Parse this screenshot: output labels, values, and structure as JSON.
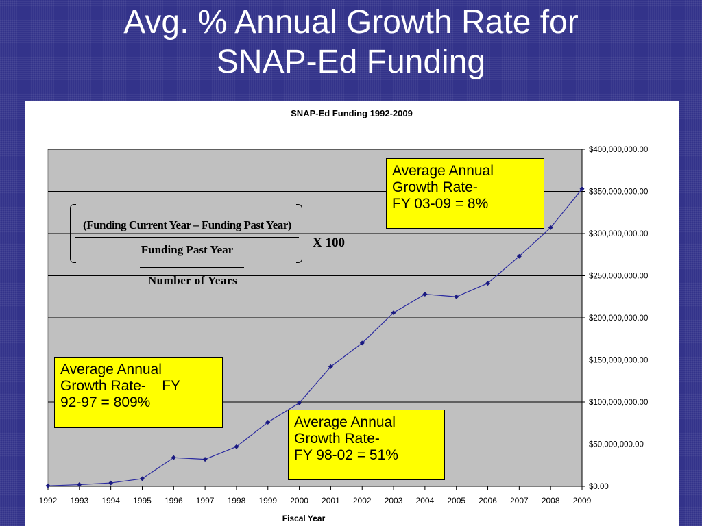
{
  "slide": {
    "title_line1": "Avg. % Annual Growth Rate for",
    "title_line2": "SNAP-Ed Funding"
  },
  "colors": {
    "slide_background": "#33338a",
    "plot_background": "#c0c0c0",
    "series_line": "#2b2ba0",
    "marker": "#1a1a80",
    "callout_fill": "#ffff00"
  },
  "chart_data": {
    "type": "line",
    "title": "SNAP-Ed Funding 1992-2009",
    "xlabel": "Fiscal Year",
    "ylabel": "",
    "x": [
      "1992",
      "1993",
      "1994",
      "1995",
      "1996",
      "1997",
      "1998",
      "1999",
      "2000",
      "2001",
      "2002",
      "2003",
      "2004",
      "2005",
      "2006",
      "2007",
      "2008",
      "2009"
    ],
    "series": [
      {
        "values": [
          661000,
          2000000,
          4000000,
          9000000,
          34000000,
          32000000,
          47000000,
          76000000,
          99000000,
          142000000,
          170000000,
          206000000,
          228000000,
          225000000,
          241000000,
          273000000,
          307000000,
          353000000
        ]
      }
    ],
    "ylim": [
      0,
      400000000
    ],
    "yticks": [
      0,
      50000000,
      100000000,
      150000000,
      200000000,
      250000000,
      300000000,
      350000000,
      400000000
    ],
    "ytick_labels": [
      "$0.00",
      "$50,000,000.00",
      "$100,000,000.00",
      "$150,000,000.00",
      "$200,000,000.00",
      "$250,000,000.00",
      "$300,000,000.00",
      "$350,000,000.00",
      "$400,000,000.00"
    ],
    "y_axis_side": "right",
    "grid": "horizontal",
    "legend": "none",
    "annotations": {
      "fy0309": [
        "Average Annual",
        "Growth Rate-",
        "FY 03-09 = 8%"
      ],
      "fy9297": [
        "Average Annual",
        "Growth Rate-    FY",
        "92-97 = 809%"
      ],
      "fy9802": [
        "Average Annual",
        "Growth Rate-",
        "FY 98-02 = 51%"
      ]
    },
    "formula": {
      "numerator": "(Funding Current Year – Funding Past Year)",
      "denominator": "Funding Past Year",
      "multiplier": "X 100",
      "divisor": "Number of Years"
    }
  }
}
